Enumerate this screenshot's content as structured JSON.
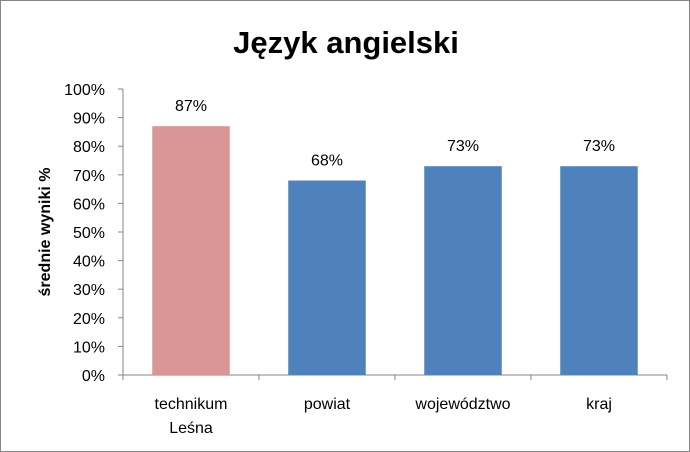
{
  "chart_data": {
    "type": "bar",
    "title": "Język angielski",
    "ylabel": "średnie wyniki %",
    "xlabel": "",
    "categories": [
      [
        "technikum",
        "Leśna"
      ],
      [
        "powiat"
      ],
      [
        "województwo"
      ],
      [
        "kraj"
      ]
    ],
    "values": [
      87,
      68,
      73,
      73
    ],
    "data_labels": [
      "87%",
      "68%",
      "73%",
      "73%"
    ],
    "bar_colors": [
      "#D99694",
      "#4F81BD",
      "#4F81BD",
      "#4F81BD"
    ],
    "ylim": [
      0,
      100
    ],
    "yticks": [
      "0%",
      "10%",
      "20%",
      "30%",
      "40%",
      "50%",
      "60%",
      "70%",
      "80%",
      "90%",
      "100%"
    ],
    "grid": false,
    "legend": "none"
  }
}
